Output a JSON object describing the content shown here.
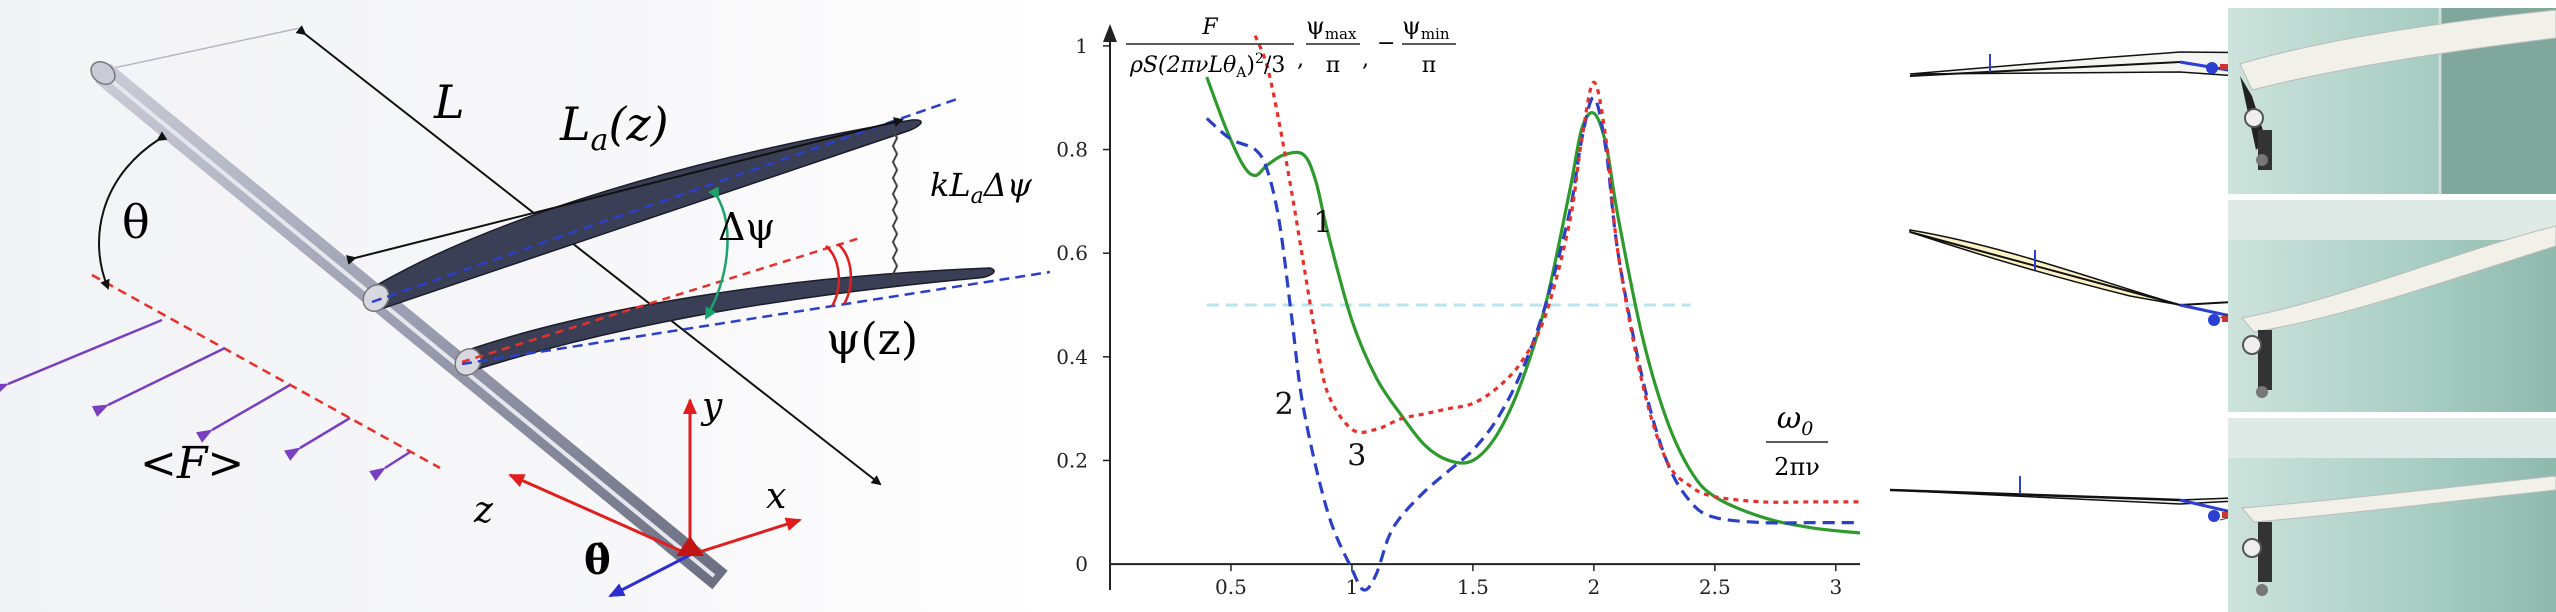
{
  "schematic": {
    "label_L": "L",
    "label_La_main": "L",
    "label_La_sub": "a",
    "label_La_arg": "(z)",
    "label_kLa_k": "kL",
    "label_kLa_sub": "a",
    "label_kLa_tail": "Δψ",
    "label_dpsi": "Δψ",
    "label_theta": "θ",
    "label_psi": "ψ(z)",
    "label_F": "<F>",
    "label_x": "x",
    "label_y": "y",
    "label_z": "z",
    "label_thetadot": "θ̇"
  },
  "chart_data": {
    "type": "line",
    "ylabel_parts": {
      "frac_num": "F",
      "frac_den": "ρS(2πνLθ",
      "frac_den_sub": "A",
      "frac_den_tail": ")",
      "frac_den_pow": "2",
      "frac_den_end": "/3",
      "psimax_num": "ψ",
      "psimax_sub": "max",
      "psimax_den": "π",
      "psimin_num": "ψ",
      "psimin_sub": "min",
      "psimin_den": "π"
    },
    "xlabel_num": "ω",
    "xlabel_num_sub": "0",
    "xlabel_den": "2πν",
    "xlim": [
      0,
      3.1
    ],
    "ylim": [
      -0.05,
      1.05
    ],
    "xticks": [
      0,
      0.5,
      1,
      1.5,
      2,
      2.5,
      3
    ],
    "xtick_labels": [
      "0",
      "0.5",
      "1",
      "1.5",
      "2",
      "2.5",
      "3"
    ],
    "yticks": [
      0.2,
      0.4,
      0.6,
      0.8,
      1
    ],
    "ytick_labels": [
      "0.2",
      "0.4",
      "0.6",
      "0.8",
      "1"
    ],
    "origin_label": "0",
    "reference_line": {
      "y": 0.5,
      "x": [
        0.4,
        2.4
      ],
      "color": "#b8e6ee"
    },
    "series": [
      {
        "name": "1",
        "color": "#2e9a2e",
        "style": "solid",
        "x": [
          0.4,
          0.48,
          0.55,
          0.6,
          0.65,
          0.72,
          0.8,
          0.85,
          0.9,
          1.0,
          1.1,
          1.2,
          1.3,
          1.4,
          1.5,
          1.6,
          1.7,
          1.8,
          1.9,
          1.95,
          2.0,
          2.05,
          2.1,
          2.2,
          2.3,
          2.4,
          2.5,
          2.7,
          2.9,
          3.1
        ],
        "y": [
          0.94,
          0.84,
          0.77,
          0.75,
          0.77,
          0.79,
          0.79,
          0.74,
          0.64,
          0.47,
          0.36,
          0.29,
          0.23,
          0.2,
          0.2,
          0.25,
          0.35,
          0.5,
          0.72,
          0.84,
          0.87,
          0.81,
          0.67,
          0.44,
          0.28,
          0.18,
          0.13,
          0.09,
          0.07,
          0.06
        ]
      },
      {
        "name": "2",
        "color": "#2a40c8",
        "style": "dashed",
        "x": [
          0.4,
          0.5,
          0.6,
          0.65,
          0.7,
          0.75,
          0.8,
          0.9,
          1.0,
          1.05,
          1.1,
          1.15,
          1.2,
          1.3,
          1.4,
          1.5,
          1.6,
          1.7,
          1.8,
          1.9,
          1.95,
          2.0,
          2.05,
          2.1,
          2.2,
          2.3,
          2.4,
          2.5,
          2.7,
          2.9,
          3.1
        ],
        "y": [
          0.86,
          0.82,
          0.8,
          0.76,
          0.66,
          0.48,
          0.3,
          0.1,
          -0.01,
          -0.05,
          -0.02,
          0.05,
          0.09,
          0.14,
          0.18,
          0.22,
          0.28,
          0.37,
          0.5,
          0.68,
          0.82,
          0.9,
          0.8,
          0.6,
          0.36,
          0.2,
          0.12,
          0.09,
          0.08,
          0.08,
          0.08
        ]
      },
      {
        "name": "3",
        "color": "#e8302a",
        "style": "dotted",
        "x": [
          0.6,
          0.65,
          0.7,
          0.75,
          0.8,
          0.85,
          0.9,
          1.0,
          1.1,
          1.2,
          1.3,
          1.4,
          1.5,
          1.6,
          1.7,
          1.8,
          1.9,
          1.95,
          2.0,
          2.05,
          2.1,
          2.2,
          2.3,
          2.4,
          2.5,
          2.7,
          2.9,
          3.1
        ],
        "y": [
          1.02,
          0.96,
          0.85,
          0.72,
          0.58,
          0.44,
          0.33,
          0.26,
          0.26,
          0.28,
          0.29,
          0.3,
          0.31,
          0.34,
          0.39,
          0.48,
          0.66,
          0.82,
          0.93,
          0.82,
          0.6,
          0.35,
          0.2,
          0.15,
          0.13,
          0.12,
          0.12,
          0.12
        ]
      }
    ],
    "curve_labels": [
      {
        "text": "1",
        "x": 0.88,
        "y": 0.64
      },
      {
        "text": "2",
        "x": 0.72,
        "y": 0.29
      },
      {
        "text": "3",
        "x": 1.02,
        "y": 0.19
      }
    ]
  },
  "photos": {
    "rows": 3,
    "colors": {
      "wall": "#9fc9bd",
      "wing": "#efefea",
      "frame": "#262626",
      "accent": "#2b3fd0"
    }
  }
}
